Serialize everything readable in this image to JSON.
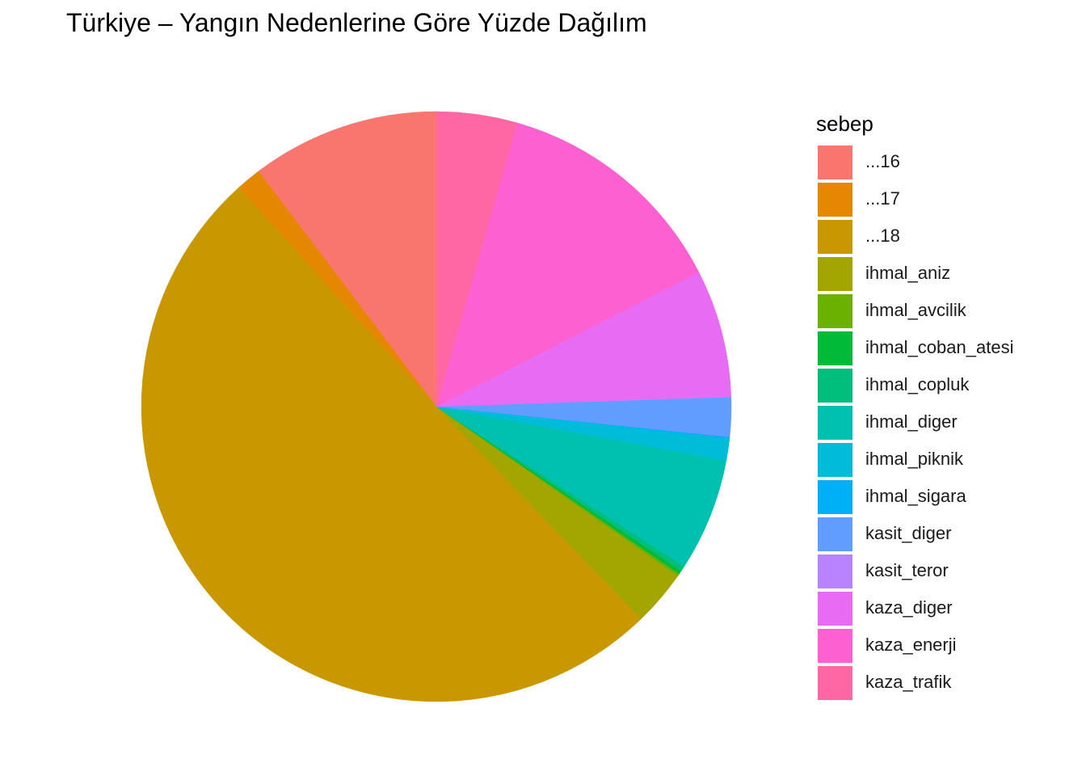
{
  "chart_data": {
    "type": "pie",
    "title": "Türkiye – Yangın Nedenlerine Göre Yüzde Dağılım",
    "legend_title": "sebep",
    "legend_position": "right",
    "unit": "percent",
    "categories": [
      "...16",
      "...17",
      "...18",
      "ihmal_aniz",
      "ihmal_avcilik",
      "ihmal_coban_atesi",
      "ihmal_copluk",
      "ihmal_diger",
      "ihmal_piknik",
      "ihmal_sigara",
      "kasit_diger",
      "kasit_teror",
      "kaza_diger",
      "kaza_enerji",
      "kaza_trafik"
    ],
    "colors": [
      "#F8766D",
      "#E58700",
      "#C99800",
      "#A3A500",
      "#6BB100",
      "#00BA38",
      "#00BF7D",
      "#00C0AF",
      "#00BCD8",
      "#00B0F6",
      "#619CFF",
      "#B983FF",
      "#E76BF3",
      "#FD61D1",
      "#FF67A4"
    ],
    "values": [
      10.5,
      1.4,
      51.5,
      3.1,
      0.15,
      0.2,
      0.3,
      6.3,
      1.2,
      0.1,
      2.2,
      0.05,
      7.1,
      13.3,
      4.5
    ]
  }
}
